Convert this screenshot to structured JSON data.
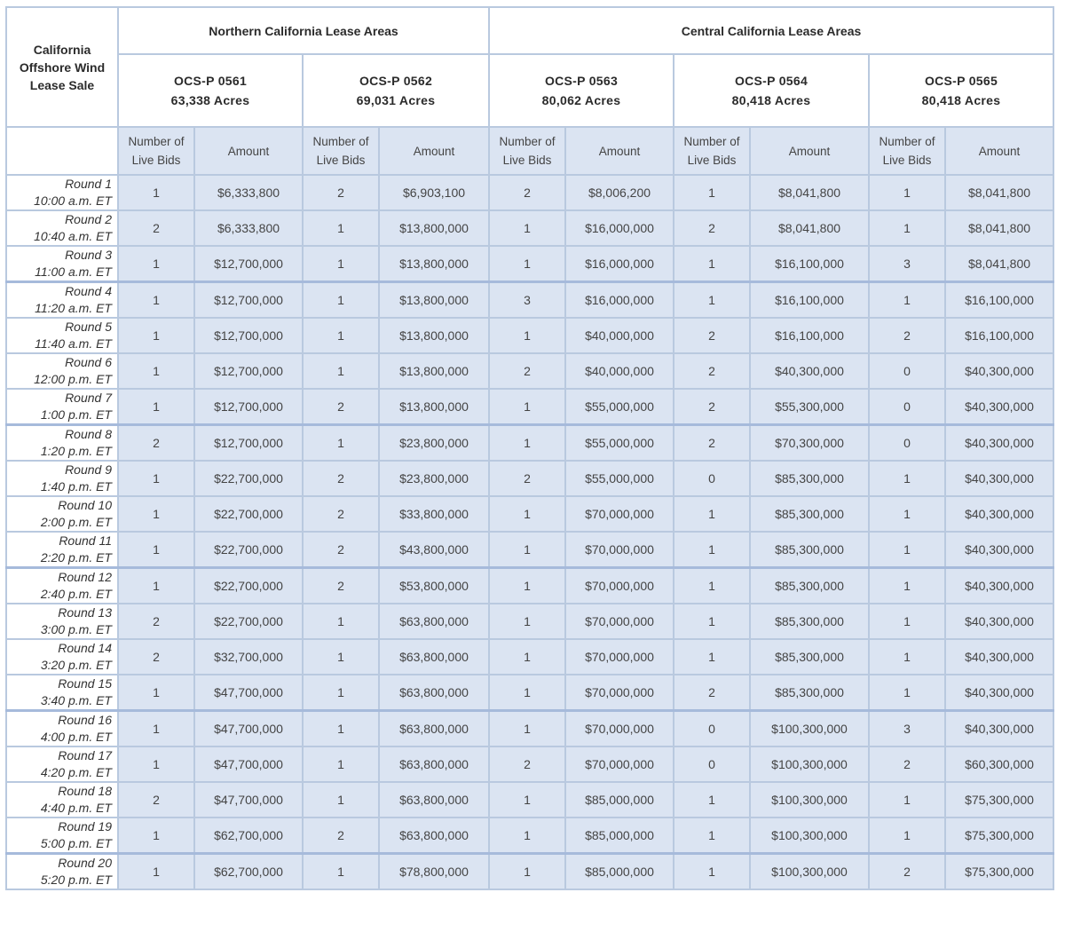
{
  "corner_label": [
    "California",
    "Offshore Wind",
    "Lease Sale"
  ],
  "regions": [
    {
      "label": "Northern California Lease Areas"
    },
    {
      "label": "Central California Lease Areas"
    }
  ],
  "leases": [
    {
      "id": "OCS-P 0561",
      "acres": "63,338 Acres"
    },
    {
      "id": "OCS-P 0562",
      "acres": "69,031 Acres"
    },
    {
      "id": "OCS-P 0563",
      "acres": "80,062 Acres"
    },
    {
      "id": "OCS-P 0564",
      "acres": "80,418 Acres"
    },
    {
      "id": "OCS-P 0565",
      "acres": "80,418 Acres"
    }
  ],
  "subheaders": {
    "bids": [
      "Number of",
      "Live Bids"
    ],
    "amount": "Amount"
  },
  "rounds": [
    {
      "name": "Round 1",
      "time": "10:00 a.m. ET",
      "cells": [
        [
          "1",
          "$6,333,800"
        ],
        [
          "2",
          "$6,903,100"
        ],
        [
          "2",
          "$8,006,200"
        ],
        [
          "1",
          "$8,041,800"
        ],
        [
          "1",
          "$8,041,800"
        ]
      ]
    },
    {
      "name": "Round 2",
      "time": "10:40 a.m. ET",
      "cells": [
        [
          "2",
          "$6,333,800"
        ],
        [
          "1",
          "$13,800,000"
        ],
        [
          "1",
          "$16,000,000"
        ],
        [
          "2",
          "$8,041,800"
        ],
        [
          "1",
          "$8,041,800"
        ]
      ]
    },
    {
      "name": "Round 3",
      "time": "11:00 a.m. ET",
      "cells": [
        [
          "1",
          "$12,700,000"
        ],
        [
          "1",
          "$13,800,000"
        ],
        [
          "1",
          "$16,000,000"
        ],
        [
          "1",
          "$16,100,000"
        ],
        [
          "3",
          "$8,041,800"
        ]
      ]
    },
    {
      "name": "Round 4",
      "time": "11:20 a.m. ET",
      "cells": [
        [
          "1",
          "$12,700,000"
        ],
        [
          "1",
          "$13,800,000"
        ],
        [
          "3",
          "$16,000,000"
        ],
        [
          "1",
          "$16,100,000"
        ],
        [
          "1",
          "$16,100,000"
        ]
      ]
    },
    {
      "name": "Round 5",
      "time": "11:40 a.m. ET",
      "cells": [
        [
          "1",
          "$12,700,000"
        ],
        [
          "1",
          "$13,800,000"
        ],
        [
          "1",
          "$40,000,000"
        ],
        [
          "2",
          "$16,100,000"
        ],
        [
          "2",
          "$16,100,000"
        ]
      ]
    },
    {
      "name": "Round 6",
      "time": "12:00 p.m. ET",
      "cells": [
        [
          "1",
          "$12,700,000"
        ],
        [
          "1",
          "$13,800,000"
        ],
        [
          "2",
          "$40,000,000"
        ],
        [
          "2",
          "$40,300,000"
        ],
        [
          "0",
          "$40,300,000"
        ]
      ]
    },
    {
      "name": "Round 7",
      "time": "1:00 p.m. ET",
      "cells": [
        [
          "1",
          "$12,700,000"
        ],
        [
          "2",
          "$13,800,000"
        ],
        [
          "1",
          "$55,000,000"
        ],
        [
          "2",
          "$55,300,000"
        ],
        [
          "0",
          "$40,300,000"
        ]
      ]
    },
    {
      "name": "Round 8",
      "time": "1:20 p.m. ET",
      "cells": [
        [
          "2",
          "$12,700,000"
        ],
        [
          "1",
          "$23,800,000"
        ],
        [
          "1",
          "$55,000,000"
        ],
        [
          "2",
          "$70,300,000"
        ],
        [
          "0",
          "$40,300,000"
        ]
      ]
    },
    {
      "name": "Round 9",
      "time": "1:40 p.m. ET",
      "cells": [
        [
          "1",
          "$22,700,000"
        ],
        [
          "2",
          "$23,800,000"
        ],
        [
          "2",
          "$55,000,000"
        ],
        [
          "0",
          "$85,300,000"
        ],
        [
          "1",
          "$40,300,000"
        ]
      ]
    },
    {
      "name": "Round 10",
      "time": "2:00 p.m. ET",
      "cells": [
        [
          "1",
          "$22,700,000"
        ],
        [
          "2",
          "$33,800,000"
        ],
        [
          "1",
          "$70,000,000"
        ],
        [
          "1",
          "$85,300,000"
        ],
        [
          "1",
          "$40,300,000"
        ]
      ]
    },
    {
      "name": "Round 11",
      "time": "2:20 p.m. ET",
      "cells": [
        [
          "1",
          "$22,700,000"
        ],
        [
          "2",
          "$43,800,000"
        ],
        [
          "1",
          "$70,000,000"
        ],
        [
          "1",
          "$85,300,000"
        ],
        [
          "1",
          "$40,300,000"
        ]
      ]
    },
    {
      "name": "Round 12",
      "time": "2:40 p.m. ET",
      "cells": [
        [
          "1",
          "$22,700,000"
        ],
        [
          "2",
          "$53,800,000"
        ],
        [
          "1",
          "$70,000,000"
        ],
        [
          "1",
          "$85,300,000"
        ],
        [
          "1",
          "$40,300,000"
        ]
      ]
    },
    {
      "name": "Round 13",
      "time": "3:00 p.m. ET",
      "cells": [
        [
          "2",
          "$22,700,000"
        ],
        [
          "1",
          "$63,800,000"
        ],
        [
          "1",
          "$70,000,000"
        ],
        [
          "1",
          "$85,300,000"
        ],
        [
          "1",
          "$40,300,000"
        ]
      ]
    },
    {
      "name": "Round 14",
      "time": "3:20 p.m. ET",
      "cells": [
        [
          "2",
          "$32,700,000"
        ],
        [
          "1",
          "$63,800,000"
        ],
        [
          "1",
          "$70,000,000"
        ],
        [
          "1",
          "$85,300,000"
        ],
        [
          "1",
          "$40,300,000"
        ]
      ]
    },
    {
      "name": "Round 15",
      "time": "3:40 p.m. ET",
      "cells": [
        [
          "1",
          "$47,700,000"
        ],
        [
          "1",
          "$63,800,000"
        ],
        [
          "1",
          "$70,000,000"
        ],
        [
          "2",
          "$85,300,000"
        ],
        [
          "1",
          "$40,300,000"
        ]
      ]
    },
    {
      "name": "Round 16",
      "time": "4:00 p.m. ET",
      "cells": [
        [
          "1",
          "$47,700,000"
        ],
        [
          "1",
          "$63,800,000"
        ],
        [
          "1",
          "$70,000,000"
        ],
        [
          "0",
          "$100,300,000"
        ],
        [
          "3",
          "$40,300,000"
        ]
      ]
    },
    {
      "name": "Round 17",
      "time": "4:20 p.m. ET",
      "cells": [
        [
          "1",
          "$47,700,000"
        ],
        [
          "1",
          "$63,800,000"
        ],
        [
          "2",
          "$70,000,000"
        ],
        [
          "0",
          "$100,300,000"
        ],
        [
          "2",
          "$60,300,000"
        ]
      ]
    },
    {
      "name": "Round 18",
      "time": "4:40 p.m. ET",
      "cells": [
        [
          "2",
          "$47,700,000"
        ],
        [
          "1",
          "$63,800,000"
        ],
        [
          "1",
          "$85,000,000"
        ],
        [
          "1",
          "$100,300,000"
        ],
        [
          "1",
          "$75,300,000"
        ]
      ]
    },
    {
      "name": "Round 19",
      "time": "5:00 p.m. ET",
      "cells": [
        [
          "1",
          "$62,700,000"
        ],
        [
          "2",
          "$63,800,000"
        ],
        [
          "1",
          "$85,000,000"
        ],
        [
          "1",
          "$100,300,000"
        ],
        [
          "1",
          "$75,300,000"
        ]
      ]
    },
    {
      "name": "Round 20",
      "time": "5:20 p.m. ET",
      "cells": [
        [
          "1",
          "$62,700,000"
        ],
        [
          "1",
          "$78,800,000"
        ],
        [
          "1",
          "$85,000,000"
        ],
        [
          "1",
          "$100,300,000"
        ],
        [
          "2",
          "$75,300,000"
        ]
      ]
    }
  ],
  "colors": {
    "cell_bg": "#dbe4f2",
    "border": "#b9c9df"
  }
}
